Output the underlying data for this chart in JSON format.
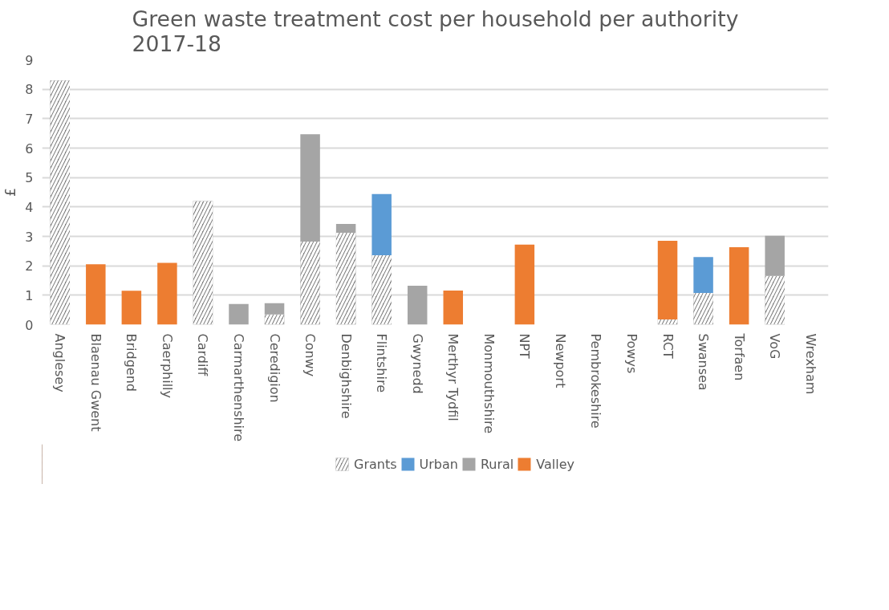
{
  "chart_data": {
    "type": "bar",
    "title": "Green waste treatment cost per household per authority\n2017-18",
    "ylabel": "£",
    "stacked": true,
    "categories": [
      "Anglesey",
      "Blaenau Gwent",
      "Bridgend",
      "Caerphilly",
      "Cardiff",
      "Carmarthenshire",
      "Ceredigion",
      "Conwy",
      "Denbighshire",
      "Flintshire",
      "Gwynedd",
      "Merthyr Tydfil",
      "Monmouthshire",
      "NPT",
      "Newport",
      "Pembrokeshire",
      "Powys",
      "RCT",
      "Swansea",
      "Torfaen",
      "VoG",
      "Wrexham"
    ],
    "series": [
      {
        "name": "Grants",
        "color": "#7f7f7f",
        "values": [
          8.3,
          null,
          null,
          null,
          4.2,
          null,
          0.35,
          2.82,
          3.12,
          2.36,
          null,
          null,
          null,
          null,
          null,
          null,
          null,
          0.18,
          1.08,
          null,
          1.66,
          null
        ]
      },
      {
        "name": "Urban",
        "color": "#5b9bd5",
        "values": [
          null,
          null,
          null,
          null,
          null,
          null,
          null,
          null,
          null,
          2.08,
          null,
          null,
          null,
          null,
          null,
          null,
          null,
          null,
          1.22,
          null,
          null,
          null
        ]
      },
      {
        "name": "Rural",
        "color": "#a5a5a5",
        "values": [
          null,
          null,
          null,
          null,
          null,
          0.7,
          0.38,
          3.65,
          0.3,
          null,
          1.32,
          null,
          null,
          null,
          null,
          null,
          null,
          null,
          null,
          null,
          1.36,
          null
        ]
      },
      {
        "name": "Valley",
        "color": "#ed7d31",
        "values": [
          null,
          2.05,
          1.15,
          2.1,
          null,
          null,
          null,
          null,
          null,
          null,
          null,
          1.16,
          null,
          2.72,
          null,
          null,
          null,
          2.67,
          null,
          2.63,
          null,
          null
        ]
      }
    ],
    "ylim": [
      0,
      9
    ],
    "yticks": [
      0,
      1,
      2,
      3,
      4,
      5,
      6,
      7,
      8,
      9
    ],
    "grid": "y",
    "legend": "bottom"
  }
}
